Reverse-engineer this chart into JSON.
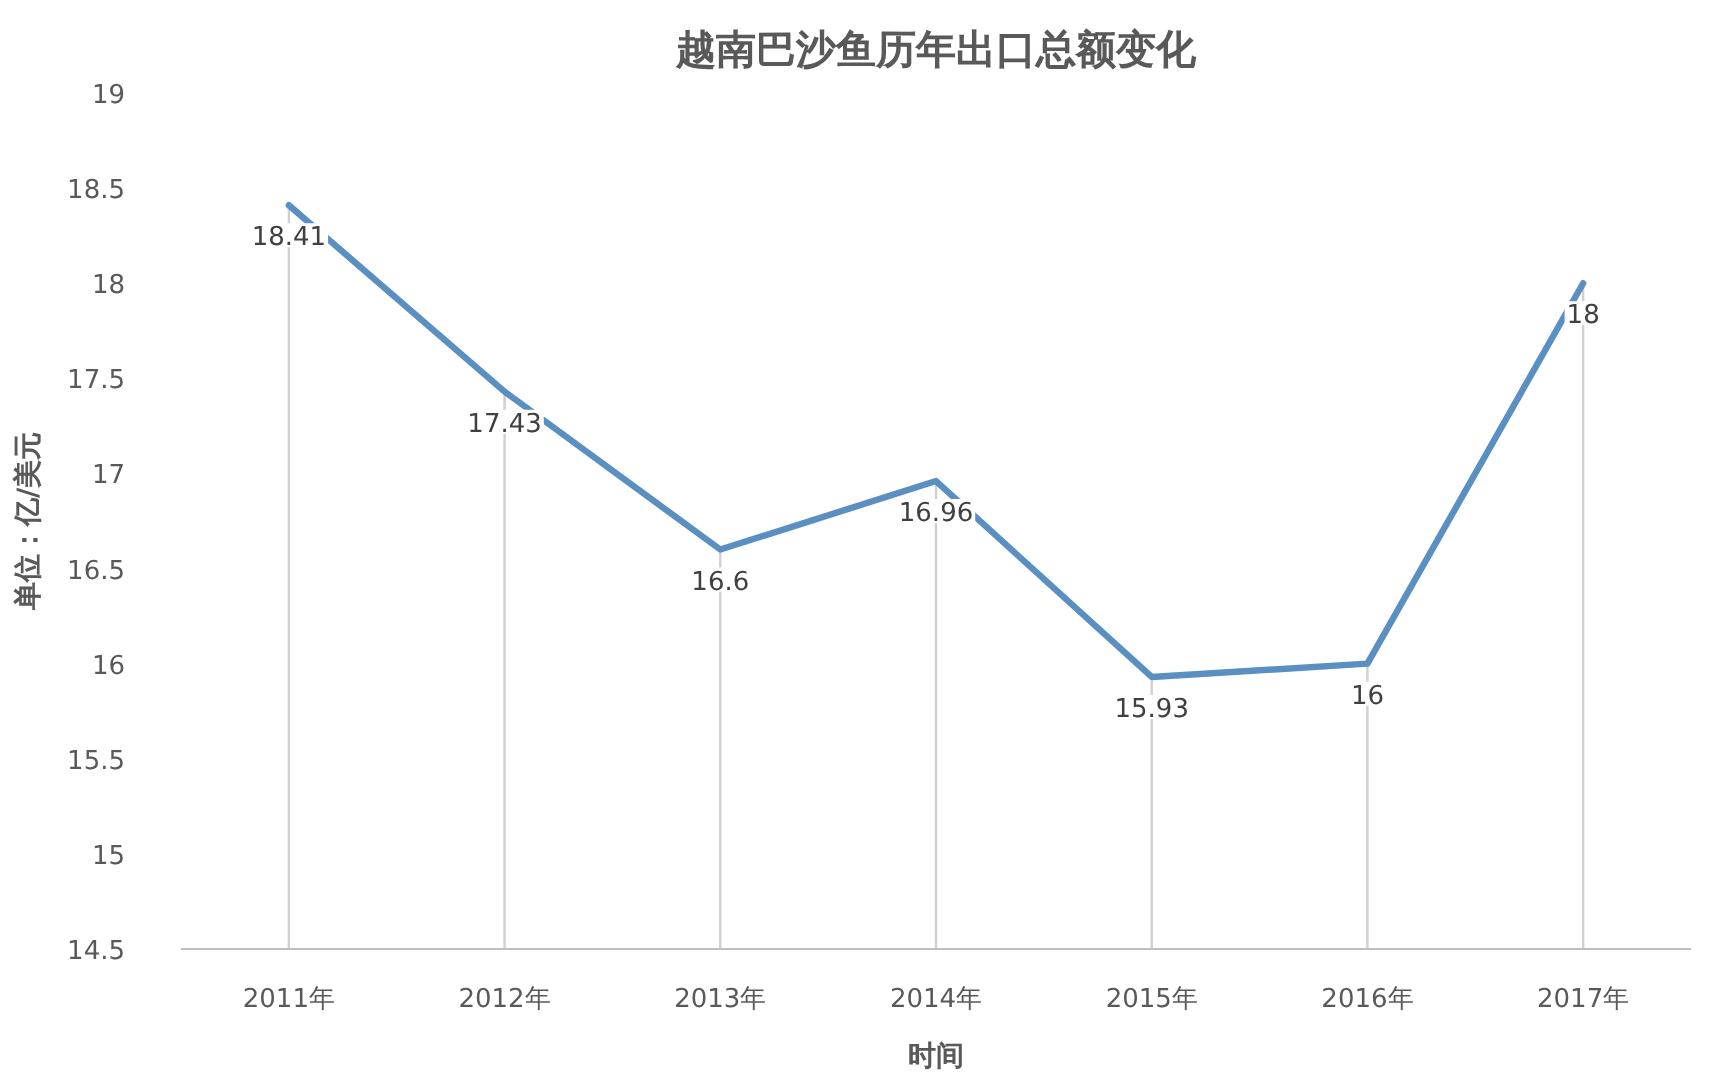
{
  "chart_data": {
    "type": "line",
    "title": "越南巴沙鱼历年出口总额变化",
    "xlabel": "时间",
    "ylabel": "单位：亿/美元",
    "categories": [
      "2011年",
      "2012年",
      "2013年",
      "2014年",
      "2015年",
      "2016年",
      "2017年"
    ],
    "series": [
      {
        "color": "#5a8fc2",
        "values": [
          18.41,
          17.43,
          16.6,
          16.96,
          15.93,
          16,
          18
        ]
      }
    ],
    "ylim": [
      14.5,
      19
    ],
    "yticks": [
      14.5,
      15,
      15.5,
      16,
      16.5,
      17,
      17.5,
      18,
      18.5,
      19
    ],
    "data_labels": true,
    "grid": "x",
    "marker": "none",
    "line_style": "solid"
  }
}
